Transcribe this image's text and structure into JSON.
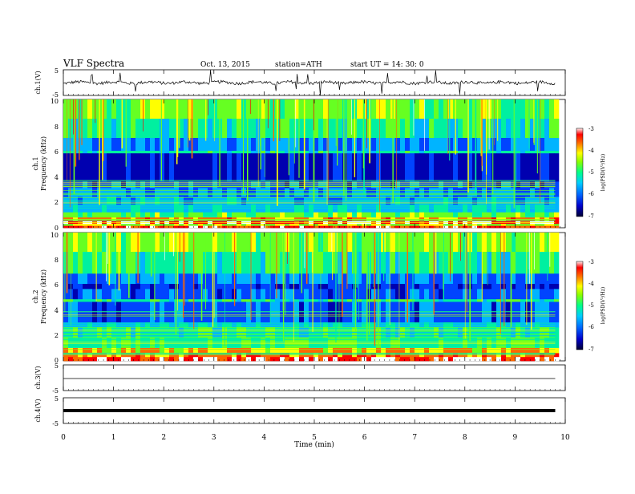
{
  "header": {
    "title": "VLF  Spectra",
    "date": "Oct. 13, 2015",
    "station": "station=ATH",
    "start": "start  UT =   14: 30: 0"
  },
  "chart_data": [
    {
      "type": "line",
      "panel": "ch1-waveform",
      "ylabel": "ch.1(V)",
      "yticks": [
        "5",
        "-5"
      ],
      "ylim": [
        -5,
        5
      ],
      "trace": "noisy baseline near 0 V with spikes to about +/-5 V",
      "xlim": [
        0,
        10
      ]
    },
    {
      "type": "heatmap",
      "panel": "ch1-spectrogram",
      "ylabel": "ch.1",
      "ylabel2": "Frequency (kHz)",
      "yticks": [
        "0",
        "2",
        "4",
        "6",
        "8",
        "10"
      ],
      "ylim": [
        0,
        10
      ],
      "xlim": [
        0,
        9.8
      ],
      "colorbar": {
        "label": "log(PSD(V²/Hz)",
        "ticks": [
          "-3",
          "-4",
          "-5",
          "-6",
          "-7"
        ],
        "range": [
          -7,
          -3
        ]
      }
    },
    {
      "type": "heatmap",
      "panel": "ch2-spectrogram",
      "ylabel": "ch.2",
      "ylabel2": "Frequency (kHz)",
      "yticks": [
        "0",
        "2",
        "4",
        "6",
        "8",
        "10"
      ],
      "ylim": [
        0,
        10
      ],
      "xlim": [
        0,
        9.8
      ],
      "colorbar": {
        "label": "log(PSD(V²/Hz)",
        "ticks": [
          "-3",
          "-4",
          "-5",
          "-6",
          "-7"
        ],
        "range": [
          -7,
          -3
        ]
      }
    },
    {
      "type": "line",
      "panel": "ch3-waveform",
      "ylabel": "ch.3(V)",
      "yticks": [
        "5",
        "-5"
      ],
      "ylim": [
        -5,
        5
      ],
      "constant_value": 0
    },
    {
      "type": "line",
      "panel": "ch4-waveform",
      "ylabel": "ch.4(V)",
      "yticks": [
        "5",
        "-5"
      ],
      "ylim": [
        -5,
        5
      ],
      "constant_value": 0
    }
  ],
  "xaxis": {
    "label": "Time  (min)",
    "ticks": [
      "0",
      "1",
      "2",
      "3",
      "4",
      "5",
      "6",
      "7",
      "8",
      "9",
      "10"
    ],
    "range": [
      0,
      10
    ]
  },
  "colors": {
    "colormap": [
      "#000077",
      "#0033ff",
      "#00aaff",
      "#00ffcc",
      "#33ff33",
      "#ffff00",
      "#ff8800",
      "#ff0000",
      "#ffffff"
    ]
  }
}
